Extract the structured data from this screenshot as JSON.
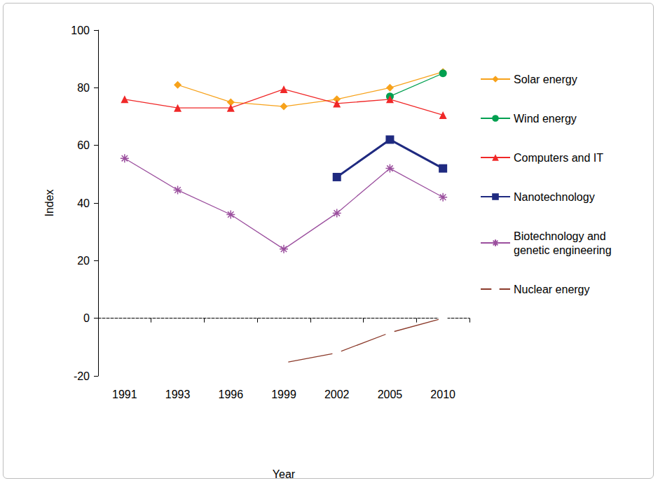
{
  "chart_data": {
    "type": "line",
    "x_label": "Year",
    "y_label": "Index",
    "categories": [
      "1991",
      "1993",
      "1996",
      "1999",
      "2002",
      "2005",
      "2010"
    ],
    "ylim": [
      -20,
      100
    ],
    "yticks": [
      -20,
      0,
      20,
      40,
      60,
      80,
      100
    ],
    "grid": false,
    "legend": "right",
    "series": [
      {
        "name": "Solar energy",
        "color": "#f7a21b",
        "marker": "diamond",
        "values": [
          null,
          81,
          75,
          73.5,
          76,
          80,
          85.5
        ]
      },
      {
        "name": "Wind energy",
        "color": "#00a050",
        "marker": "circle",
        "values": [
          null,
          null,
          null,
          null,
          null,
          77,
          85
        ]
      },
      {
        "name": "Computers and IT",
        "color": "#f02828",
        "marker": "triangle",
        "values": [
          76,
          73,
          73,
          79.5,
          74.5,
          76,
          70.5
        ]
      },
      {
        "name": "Nanotechnology",
        "color": "#1f2a80",
        "marker": "square",
        "values": [
          null,
          null,
          null,
          null,
          49,
          62,
          52
        ]
      },
      {
        "name": "Biotechnology and genetic engineering",
        "color": "#9b4f9e",
        "marker": "asterisk",
        "values": [
          55.5,
          44.5,
          36,
          24,
          36.5,
          52,
          42
        ]
      },
      {
        "name": "Nuclear energy",
        "color": "#8b3a2a",
        "marker": "open_circle",
        "values": [
          null,
          null,
          null,
          -15.5,
          -12,
          -5,
          0
        ]
      }
    ]
  }
}
